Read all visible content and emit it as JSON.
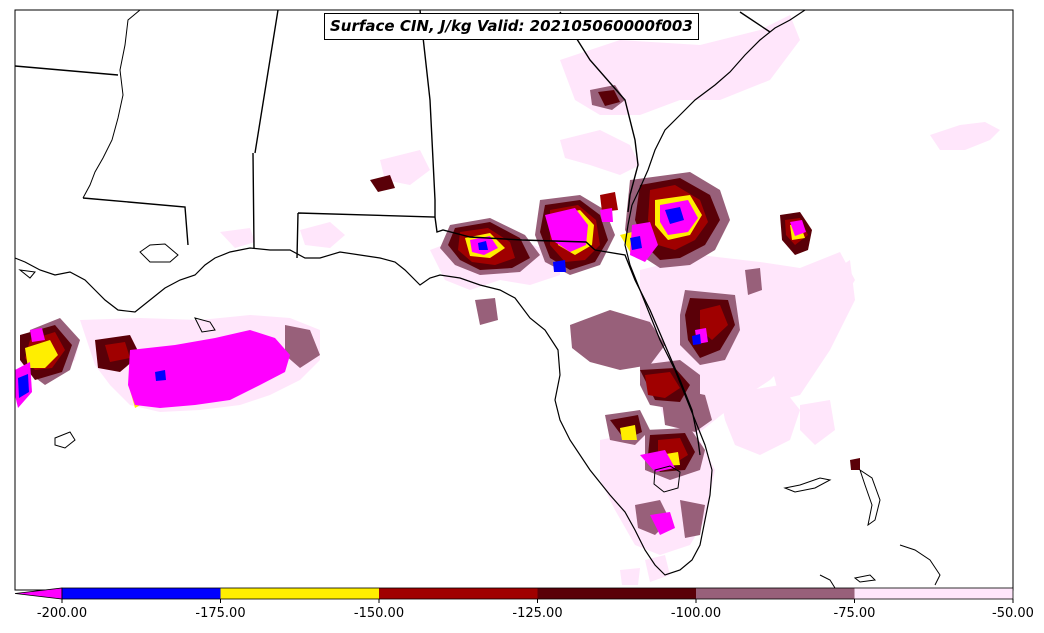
{
  "title": "Surface CIN, J/kg Valid: 202105060000f003",
  "colorbar": {
    "extend": "min",
    "extend_color": "#ff00ff",
    "bins": [
      {
        "from": -200,
        "to": -175,
        "color": "#0000ff"
      },
      {
        "from": -175,
        "to": -150,
        "color": "#ffee00"
      },
      {
        "from": -150,
        "to": -125,
        "color": "#a00000"
      },
      {
        "from": -125,
        "to": -100,
        "color": "#5a0008"
      },
      {
        "from": -100,
        "to": -75,
        "color": "#98607a"
      },
      {
        "from": -75,
        "to": -50,
        "color": "#ffe6fb"
      }
    ],
    "tick_labels": [
      "-200.00",
      "-175.00",
      "-150.00",
      "-125.00",
      "-100.00",
      "-75.00",
      "-50.00"
    ]
  },
  "colors": {
    "magenta": "#ff00ff",
    "blue": "#0000ff",
    "yellow": "#ffee00",
    "red": "#a00000",
    "darkred": "#5a0008",
    "mauve": "#98607a",
    "pink": "#ffe6fb",
    "outline": "#000000"
  }
}
